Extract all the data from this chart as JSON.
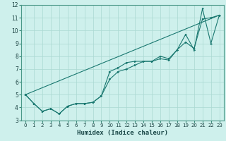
{
  "xlabel": "Humidex (Indice chaleur)",
  "bg_color": "#cef0ec",
  "grid_color": "#aad8d2",
  "line_color": "#1a7870",
  "xlim": [
    -0.5,
    23.5
  ],
  "ylim": [
    3,
    12
  ],
  "xticks": [
    0,
    1,
    2,
    3,
    4,
    5,
    6,
    7,
    8,
    9,
    10,
    11,
    12,
    13,
    14,
    15,
    16,
    17,
    18,
    19,
    20,
    21,
    22,
    23
  ],
  "yticks": [
    3,
    4,
    5,
    6,
    7,
    8,
    9,
    10,
    11,
    12
  ],
  "line1_x": [
    0,
    1,
    2,
    3,
    4,
    5,
    6,
    7,
    8,
    9,
    10,
    11,
    12,
    13,
    14,
    15,
    16,
    17,
    18,
    19,
    20,
    21,
    22,
    23
  ],
  "line1_y": [
    5.0,
    4.3,
    3.7,
    3.9,
    3.5,
    4.1,
    4.3,
    4.3,
    4.4,
    4.9,
    6.8,
    7.1,
    7.5,
    7.6,
    7.6,
    7.6,
    8.0,
    7.8,
    8.5,
    9.7,
    8.5,
    11.7,
    9.0,
    11.2
  ],
  "line2_x": [
    0,
    1,
    2,
    3,
    4,
    5,
    6,
    7,
    8,
    9,
    10,
    11,
    12,
    13,
    14,
    15,
    16,
    17,
    18,
    19,
    20,
    21,
    22,
    23
  ],
  "line2_y": [
    5.0,
    4.3,
    3.7,
    3.9,
    3.5,
    4.1,
    4.3,
    4.3,
    4.4,
    4.9,
    6.2,
    6.8,
    7.0,
    7.3,
    7.6,
    7.6,
    7.8,
    7.7,
    8.5,
    9.1,
    8.6,
    10.9,
    11.0,
    11.2
  ],
  "line3_x": [
    0,
    23
  ],
  "line3_y": [
    5.0,
    11.2
  ]
}
